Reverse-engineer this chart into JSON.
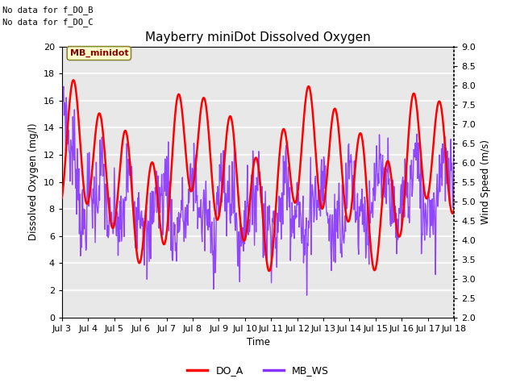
{
  "title": "Mayberry miniDot Dissolved Oxygen",
  "xlabel": "Time",
  "ylabel_left": "Dissolved Oxygen (mg/l)",
  "ylabel_right": "Wind Speed (m/s)",
  "annotation_lines": [
    "No data for f_DO_B",
    "No data for f_DO_C"
  ],
  "legend_box_label": "MB_minidot",
  "legend_entries": [
    "DO_A",
    "MB_WS"
  ],
  "legend_colors": [
    "#ff0000",
    "#8833ff"
  ],
  "ylim_left": [
    0,
    20
  ],
  "ylim_right": [
    2.0,
    9.0
  ],
  "yticks_left": [
    0,
    2,
    4,
    6,
    8,
    10,
    12,
    14,
    16,
    18,
    20
  ],
  "yticks_right": [
    2.0,
    2.5,
    3.0,
    3.5,
    4.0,
    4.5,
    5.0,
    5.5,
    6.0,
    6.5,
    7.0,
    7.5,
    8.0,
    8.5,
    9.0
  ],
  "xtick_labels": [
    "Jul 3",
    "Jul 4",
    "Jul 5",
    "Jul 6",
    "Jul 7",
    "Jul 8",
    "Jul 9",
    "Jul 10",
    "Jul 11",
    "Jul 12",
    "Jul 13",
    "Jul 14",
    "Jul 15",
    "Jul 16",
    "Jul 17",
    "Jul 18"
  ],
  "do_color": "#ff0000",
  "ws_color": "#8833ff",
  "bg_color": "#e8e8e8",
  "grid_color": "#ffffff",
  "do_linewidth": 1.8,
  "ws_linewidth": 1.0,
  "figsize": [
    6.4,
    4.8
  ],
  "dpi": 100
}
